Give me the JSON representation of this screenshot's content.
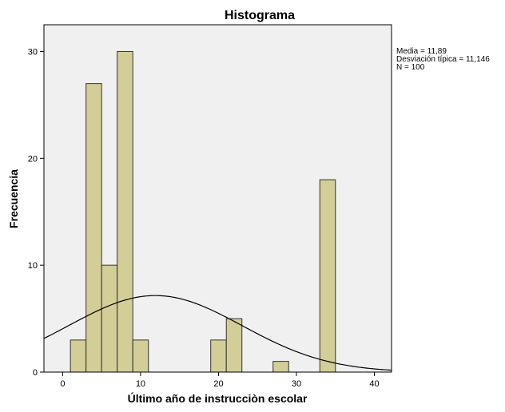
{
  "chart_data": {
    "type": "bar",
    "subtype": "histogram",
    "title": "Histograma",
    "xlabel": "Último año de instrucciòn escolar",
    "ylabel": "Frecuencia",
    "xlim": [
      -2.4,
      42.2
    ],
    "ylim": [
      0,
      32.5
    ],
    "x_ticks": [
      0,
      10,
      20,
      30,
      40
    ],
    "y_ticks": [
      0,
      10,
      20,
      30
    ],
    "bin_width": 2,
    "bins": [
      {
        "start": 1,
        "end": 3,
        "count": 3
      },
      {
        "start": 3,
        "end": 5,
        "count": 27
      },
      {
        "start": 5,
        "end": 7,
        "count": 10
      },
      {
        "start": 7,
        "end": 9,
        "count": 30
      },
      {
        "start": 9,
        "end": 11,
        "count": 3
      },
      {
        "start": 19,
        "end": 21,
        "count": 3
      },
      {
        "start": 21,
        "end": 23,
        "count": 5
      },
      {
        "start": 27,
        "end": 29,
        "count": 1
      },
      {
        "start": 33,
        "end": 35,
        "count": 18
      }
    ],
    "normal_curve": {
      "mean": 11.89,
      "sd": 11.146,
      "n": 100
    },
    "stats": [
      "Media = 11,89",
      "Desviación típica = 11,146",
      "N = 100"
    ],
    "grid": false,
    "colors": {
      "plot_background": "#f0f0f0",
      "bar_fill": "#d3ce97",
      "bar_stroke": "#333333",
      "curve": "#000000"
    }
  }
}
